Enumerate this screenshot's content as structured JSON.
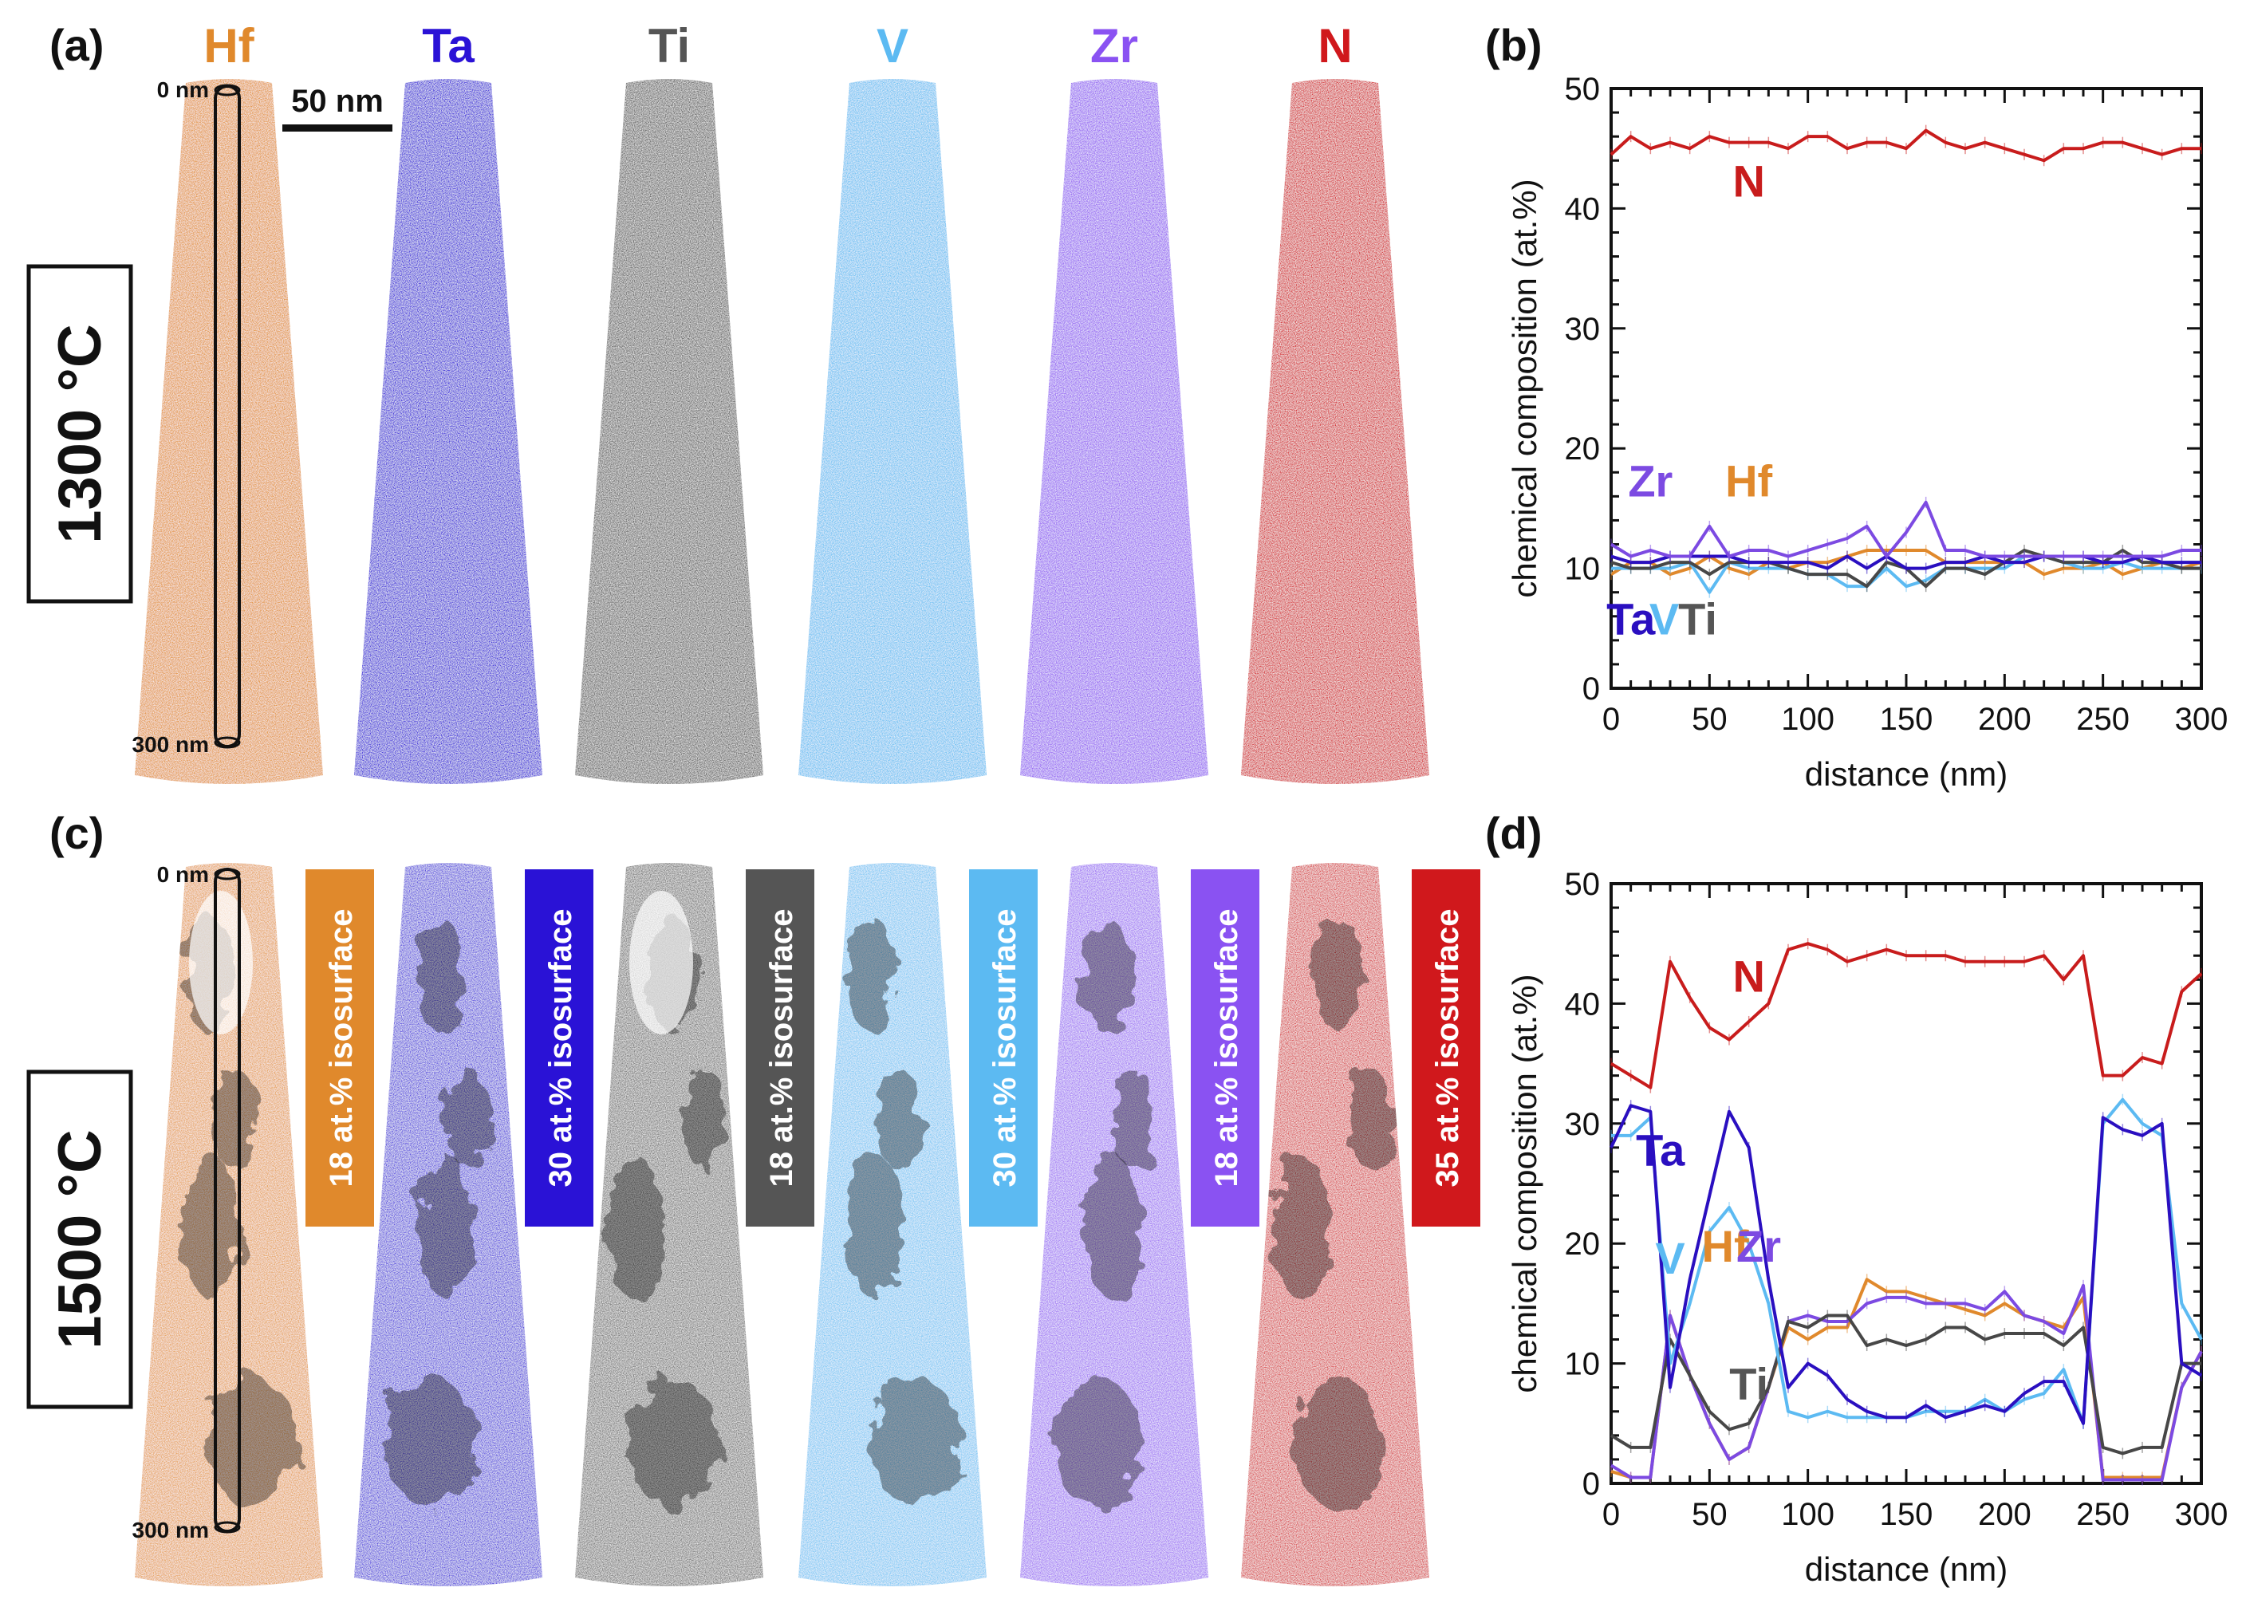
{
  "panels": {
    "a": "(a)",
    "b": "(b)",
    "c": "(c)",
    "d": "(d)"
  },
  "temperatures": {
    "top": "1300 °C",
    "bottom": "1500 °C"
  },
  "elements": [
    {
      "name": "Hf",
      "color": "#e0892c",
      "iso": "18 at.% isosurface"
    },
    {
      "name": "Ta",
      "color": "#2a12d6",
      "iso": "30 at.% isosurface"
    },
    {
      "name": "Ti",
      "color": "#555555",
      "iso": "18 at.% isosurface"
    },
    {
      "name": "V",
      "color": "#5cbaf2",
      "iso": "30 at.% isosurface"
    },
    {
      "name": "Zr",
      "color": "#8a52f2",
      "iso": "18 at.% isosurface"
    },
    {
      "name": "N",
      "color": "#d0181c",
      "iso": "35 at.% isosurface"
    }
  ],
  "depth_labels": {
    "top": "0 nm",
    "bottom": "300 nm"
  },
  "scale_bar": "50 nm",
  "chart_data": [
    {
      "type": "line",
      "panel": "(b)",
      "xlabel": "distance (nm)",
      "ylabel": "chemical composition (at.%)",
      "xlim": [
        0,
        300
      ],
      "ylim": [
        0,
        50
      ],
      "xticks": [
        0,
        50,
        100,
        150,
        200,
        250,
        300
      ],
      "yticks": [
        0,
        10,
        20,
        30,
        40,
        50
      ],
      "x": [
        0,
        10,
        20,
        30,
        40,
        50,
        60,
        70,
        80,
        90,
        100,
        110,
        120,
        130,
        140,
        150,
        160,
        170,
        180,
        190,
        200,
        210,
        220,
        230,
        240,
        250,
        260,
        270,
        280,
        290,
        300
      ],
      "series": [
        {
          "name": "Hf",
          "color": "#e0892c",
          "values": [
            9.5,
            10.5,
            10.5,
            9.5,
            10,
            11,
            10,
            9.5,
            10.5,
            10,
            10.5,
            10.5,
            11,
            11.5,
            11.5,
            11.5,
            11.5,
            10.5,
            10.5,
            10.5,
            10.5,
            10.5,
            9.5,
            10,
            10,
            10.5,
            9.5,
            10,
            10.5,
            10,
            10.5
          ]
        },
        {
          "name": "V",
          "color": "#5cbaf2",
          "values": [
            10,
            10,
            10,
            10,
            10.5,
            8,
            10.5,
            10,
            10,
            10,
            9.5,
            9.5,
            8.5,
            8.5,
            10,
            8.5,
            9,
            10,
            10,
            10,
            10,
            11,
            11,
            10.5,
            10,
            10,
            10.5,
            10,
            10,
            10,
            10
          ]
        },
        {
          "name": "Ti",
          "color": "#474747",
          "values": [
            10.5,
            10,
            10,
            10.5,
            10.5,
            9.5,
            10.5,
            10.5,
            10.5,
            10,
            9.5,
            9.5,
            9.5,
            8.5,
            10.5,
            10,
            8.5,
            10,
            10,
            9.5,
            10.5,
            11.5,
            11,
            10.5,
            10.5,
            10.5,
            11.5,
            10.5,
            10.5,
            10,
            10
          ]
        },
        {
          "name": "Ta",
          "color": "#2a0fc0",
          "values": [
            11,
            10.5,
            10.5,
            11,
            11,
            11,
            11,
            10.5,
            10.5,
            10.5,
            10.5,
            10,
            11,
            10,
            11,
            10,
            10,
            10.5,
            10.5,
            11,
            10.5,
            10.5,
            11,
            11,
            11,
            10.5,
            10.5,
            11,
            10.5,
            10.5,
            10.5
          ]
        },
        {
          "name": "Zr",
          "color": "#7c4ae2",
          "values": [
            12,
            11,
            11.5,
            11,
            11,
            13.5,
            11,
            11.5,
            11.5,
            11,
            11.5,
            12,
            12.5,
            13.5,
            11,
            13,
            15.5,
            11.5,
            11.5,
            11,
            11,
            11,
            11,
            11,
            11,
            11,
            11,
            11,
            11,
            11.5,
            11.5
          ]
        },
        {
          "name": "N",
          "color": "#c81c1c",
          "values": [
            44.5,
            46,
            45,
            45.5,
            45,
            46,
            45.5,
            45.5,
            45.5,
            45,
            46,
            46,
            45,
            45.5,
            45.5,
            45,
            46.5,
            45.5,
            45,
            45.5,
            45,
            44.5,
            44,
            45,
            45,
            45.5,
            45.5,
            45,
            44.5,
            45,
            45
          ]
        }
      ],
      "annotations": [
        {
          "text": "N",
          "color": "#c81c1c",
          "x": 70,
          "y": 41
        },
        {
          "text": "Zr",
          "color": "#7c4ae2",
          "x": 20,
          "y": 16
        },
        {
          "text": "Hf",
          "color": "#e0892c",
          "x": 70,
          "y": 16
        },
        {
          "text": "Ta",
          "color": "#2a0fc0",
          "x": 10,
          "y": 4.5
        },
        {
          "text": "V",
          "color": "#5cbaf2",
          "x": 27,
          "y": 4.5
        },
        {
          "text": "Ti",
          "color": "#555555",
          "x": 44,
          "y": 4.5
        }
      ]
    },
    {
      "type": "line",
      "panel": "(d)",
      "xlabel": "distance (nm)",
      "ylabel": "chemical composition (at.%)",
      "xlim": [
        0,
        300
      ],
      "ylim": [
        0,
        50
      ],
      "xticks": [
        0,
        50,
        100,
        150,
        200,
        250,
        300
      ],
      "yticks": [
        0,
        10,
        20,
        30,
        40,
        50
      ],
      "x": [
        0,
        10,
        20,
        30,
        40,
        50,
        60,
        70,
        80,
        90,
        100,
        110,
        120,
        130,
        140,
        150,
        160,
        170,
        180,
        190,
        200,
        210,
        220,
        230,
        240,
        250,
        260,
        270,
        280,
        290,
        300
      ],
      "series": [
        {
          "name": "Hf",
          "color": "#e0892c",
          "values": [
            1,
            0.5,
            0.5,
            14,
            9,
            5,
            2,
            3,
            8,
            13,
            12,
            13,
            13,
            17,
            16,
            16,
            15.5,
            15,
            14.5,
            14,
            15,
            14,
            13.5,
            13,
            15.5,
            0.5,
            0.5,
            0.5,
            0.5,
            8,
            11
          ]
        },
        {
          "name": "Zr",
          "color": "#7c4ae2",
          "values": [
            1.5,
            0.5,
            0.5,
            14,
            9,
            5,
            2,
            3,
            8,
            13.5,
            14,
            13.5,
            13.5,
            15,
            15.5,
            15.5,
            15,
            15,
            15,
            14.5,
            16,
            14,
            13.5,
            12.5,
            16.5,
            0.3,
            0.3,
            0.3,
            0.3,
            8,
            11
          ]
        },
        {
          "name": "Ti",
          "color": "#474747",
          "values": [
            4,
            3,
            3,
            12,
            9,
            6,
            4.5,
            5,
            8,
            13.5,
            13,
            14,
            14,
            11.5,
            12,
            11.5,
            12,
            13,
            13,
            12,
            12.5,
            12.5,
            12.5,
            11.5,
            13,
            3,
            2.5,
            3,
            3,
            10,
            10
          ]
        },
        {
          "name": "V",
          "color": "#5cbaf2",
          "values": [
            29,
            29,
            30.5,
            10,
            15,
            21,
            23,
            20,
            15,
            6,
            5.5,
            6,
            5.5,
            5.5,
            5.5,
            5.5,
            6,
            6,
            6,
            7,
            6,
            7,
            7.5,
            9.5,
            5,
            30,
            32,
            30,
            29,
            15,
            12
          ]
        },
        {
          "name": "Ta",
          "color": "#2a0fc0",
          "values": [
            28,
            31.5,
            31,
            8,
            17,
            24,
            31,
            28,
            17,
            8,
            10,
            9,
            7,
            6,
            5.5,
            5.5,
            6.5,
            5.5,
            6,
            6.5,
            6,
            7.5,
            8.5,
            8.5,
            5,
            30.5,
            29.5,
            29,
            30,
            10,
            9
          ]
        },
        {
          "name": "N",
          "color": "#c81c1c",
          "values": [
            35,
            34,
            33,
            43.5,
            40.5,
            38,
            37,
            38.5,
            40,
            44.5,
            45,
            44.5,
            43.5,
            44,
            44.5,
            44,
            44,
            44,
            43.5,
            43.5,
            43.5,
            43.5,
            44,
            42,
            44,
            34,
            34,
            35.5,
            35,
            41,
            42.5
          ]
        }
      ],
      "annotations": [
        {
          "text": "N",
          "color": "#c81c1c",
          "x": 70,
          "y": 41
        },
        {
          "text": "Ta",
          "color": "#2a0fc0",
          "x": 25,
          "y": 26.5
        },
        {
          "text": "V",
          "color": "#5cbaf2",
          "x": 30,
          "y": 17.5
        },
        {
          "text": "Hf",
          "color": "#e0892c",
          "x": 58,
          "y": 18.5
        },
        {
          "text": "Zr",
          "color": "#7c4ae2",
          "x": 75,
          "y": 18.5
        },
        {
          "text": "Ti",
          "color": "#555555",
          "x": 70,
          "y": 7
        }
      ]
    }
  ]
}
